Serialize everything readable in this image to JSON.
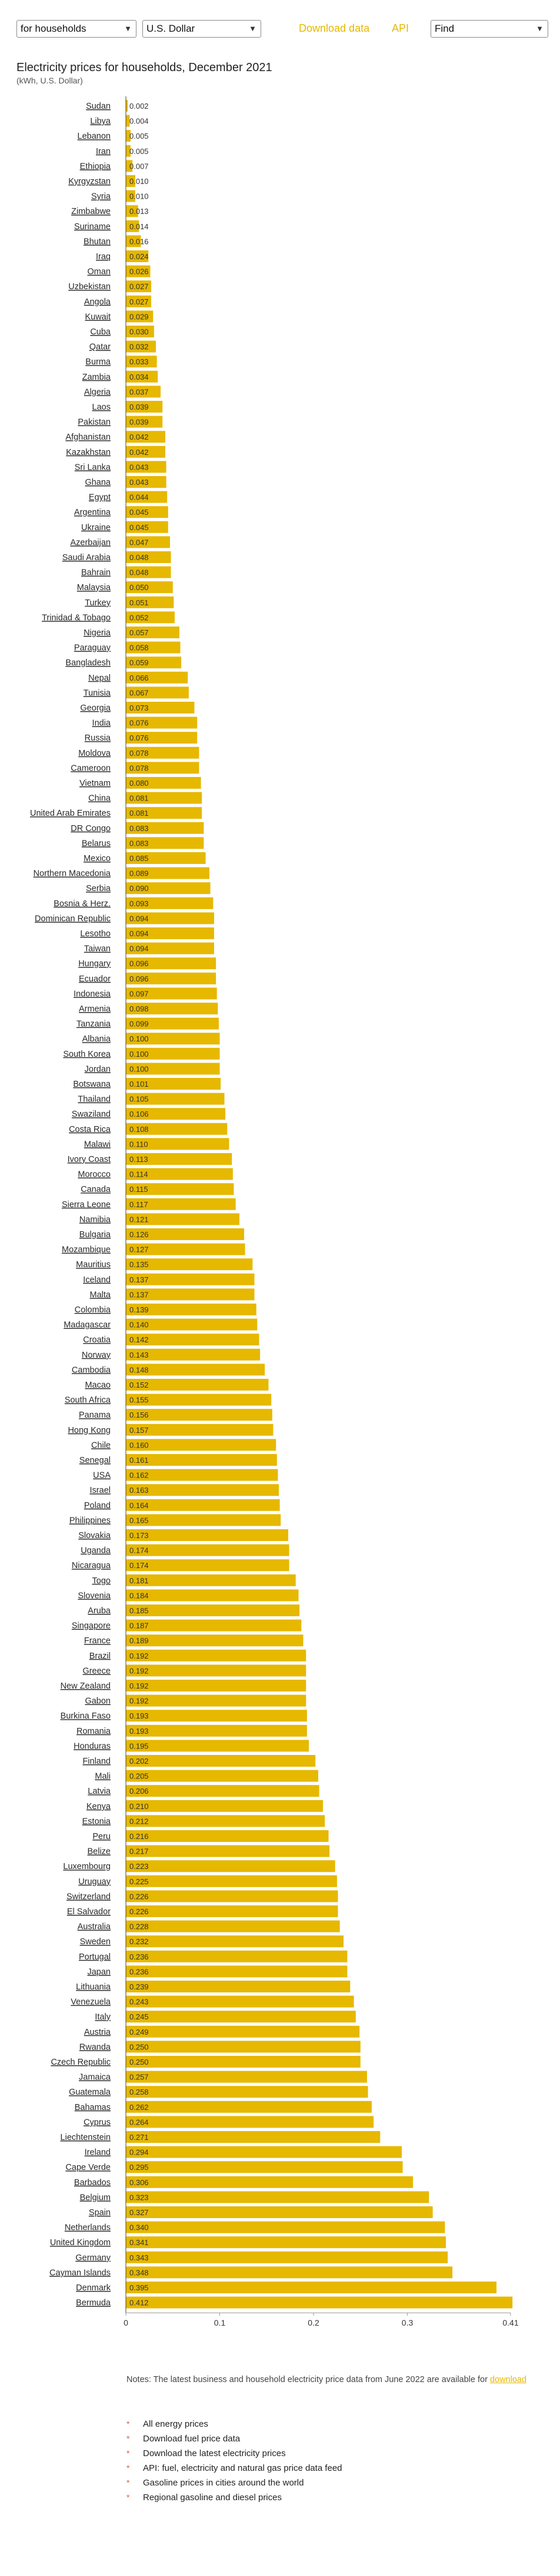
{
  "controls": {
    "consumer_select": "for households",
    "currency_select": "U.S. Dollar",
    "find_select": "Find",
    "download_link": "Download data",
    "api_link": "API"
  },
  "page": {
    "title": "Electricity prices for households, December 2021",
    "subtitle": "(kWh, U.S. Dollar)"
  },
  "chart_data": {
    "type": "bar",
    "orientation": "horizontal",
    "title": "Electricity prices for households, December 2021",
    "subtitle": "(kWh, U.S. Dollar)",
    "bar_color": "#e6b800",
    "xlim": [
      0,
      0.41
    ],
    "x_ticks": [
      "0",
      "0.1",
      "0.2",
      "0.3",
      "0.41"
    ],
    "x_tick_values": [
      0,
      0.1,
      0.2,
      0.3,
      0.41
    ],
    "categories": [
      "Sudan",
      "Libya",
      "Lebanon",
      "Iran",
      "Ethiopia",
      "Kyrgyzstan",
      "Syria",
      "Zimbabwe",
      "Suriname",
      "Bhutan",
      "Iraq",
      "Oman",
      "Uzbekistan",
      "Angola",
      "Kuwait",
      "Cuba",
      "Qatar",
      "Burma",
      "Zambia",
      "Algeria",
      "Laos",
      "Pakistan",
      "Afghanistan",
      "Kazakhstan",
      "Sri Lanka",
      "Ghana",
      "Egypt",
      "Argentina",
      "Ukraine",
      "Azerbaijan",
      "Saudi Arabia",
      "Bahrain",
      "Malaysia",
      "Turkey",
      "Trinidad & Tobago",
      "Nigeria",
      "Paraguay",
      "Bangladesh",
      "Nepal",
      "Tunisia",
      "Georgia",
      "India",
      "Russia",
      "Moldova",
      "Cameroon",
      "Vietnam",
      "China",
      "United Arab Emirates",
      "DR Congo",
      "Belarus",
      "Mexico",
      "Northern Macedonia",
      "Serbia",
      "Bosnia & Herz.",
      "Dominican Republic",
      "Lesotho",
      "Taiwan",
      "Hungary",
      "Ecuador",
      "Indonesia",
      "Armenia",
      "Tanzania",
      "Albania",
      "South Korea",
      "Jordan",
      "Botswana",
      "Thailand",
      "Swaziland",
      "Costa Rica",
      "Malawi",
      "Ivory Coast",
      "Morocco",
      "Canada",
      "Sierra Leone",
      "Namibia",
      "Bulgaria",
      "Mozambique",
      "Mauritius",
      "Iceland",
      "Malta",
      "Colombia",
      "Madagascar",
      "Croatia",
      "Norway",
      "Cambodia",
      "Macao",
      "South Africa",
      "Panama",
      "Hong Kong",
      "Chile",
      "Senegal",
      "USA",
      "Israel",
      "Poland",
      "Philippines",
      "Slovakia",
      "Uganda",
      "Nicaragua",
      "Togo",
      "Slovenia",
      "Aruba",
      "Singapore",
      "France",
      "Brazil",
      "Greece",
      "New Zealand",
      "Gabon",
      "Burkina Faso",
      "Romania",
      "Honduras",
      "Finland",
      "Mali",
      "Latvia",
      "Kenya",
      "Estonia",
      "Peru",
      "Belize",
      "Luxembourg",
      "Uruguay",
      "Switzerland",
      "El Salvador",
      "Australia",
      "Sweden",
      "Portugal",
      "Japan",
      "Lithuania",
      "Venezuela",
      "Italy",
      "Austria",
      "Rwanda",
      "Czech Republic",
      "Jamaica",
      "Guatemala",
      "Bahamas",
      "Cyprus",
      "Liechtenstein",
      "Ireland",
      "Cape Verde",
      "Barbados",
      "Belgium",
      "Spain",
      "Netherlands",
      "United Kingdom",
      "Germany",
      "Cayman Islands",
      "Denmark",
      "Bermuda"
    ],
    "values": [
      0.002,
      0.004,
      0.005,
      0.005,
      0.007,
      0.01,
      0.01,
      0.013,
      0.014,
      0.016,
      0.024,
      0.026,
      0.027,
      0.027,
      0.029,
      0.03,
      0.032,
      0.033,
      0.034,
      0.037,
      0.039,
      0.039,
      0.042,
      0.042,
      0.043,
      0.043,
      0.044,
      0.045,
      0.045,
      0.047,
      0.048,
      0.048,
      0.05,
      0.051,
      0.052,
      0.057,
      0.058,
      0.059,
      0.066,
      0.067,
      0.073,
      0.076,
      0.076,
      0.078,
      0.078,
      0.08,
      0.081,
      0.081,
      0.083,
      0.083,
      0.085,
      0.089,
      0.09,
      0.093,
      0.094,
      0.094,
      0.094,
      0.096,
      0.096,
      0.097,
      0.098,
      0.099,
      0.1,
      0.1,
      0.1,
      0.101,
      0.105,
      0.106,
      0.108,
      0.11,
      0.113,
      0.114,
      0.115,
      0.117,
      0.121,
      0.126,
      0.127,
      0.135,
      0.137,
      0.137,
      0.139,
      0.14,
      0.142,
      0.143,
      0.148,
      0.152,
      0.155,
      0.156,
      0.157,
      0.16,
      0.161,
      0.162,
      0.163,
      0.164,
      0.165,
      0.173,
      0.174,
      0.174,
      0.181,
      0.184,
      0.185,
      0.187,
      0.189,
      0.192,
      0.192,
      0.192,
      0.192,
      0.193,
      0.193,
      0.195,
      0.202,
      0.205,
      0.206,
      0.21,
      0.212,
      0.216,
      0.217,
      0.223,
      0.225,
      0.226,
      0.226,
      0.228,
      0.232,
      0.236,
      0.236,
      0.239,
      0.243,
      0.245,
      0.249,
      0.25,
      0.25,
      0.257,
      0.258,
      0.262,
      0.264,
      0.271,
      0.294,
      0.295,
      0.306,
      0.323,
      0.327,
      0.34,
      0.341,
      0.343,
      0.348,
      0.395,
      0.412
    ],
    "value_labels": [
      "0.002",
      "0.004",
      "0.005",
      "0.005",
      "0.007",
      "0.010",
      "0.010",
      "0.013",
      "0.014",
      "0.016",
      "0.024",
      "0.026",
      "0.027",
      "0.027",
      "0.029",
      "0.030",
      "0.032",
      "0.033",
      "0.034",
      "0.037",
      "0.039",
      "0.039",
      "0.042",
      "0.042",
      "0.043",
      "0.043",
      "0.044",
      "0.045",
      "0.045",
      "0.047",
      "0.048",
      "0.048",
      "0.050",
      "0.051",
      "0.052",
      "0.057",
      "0.058",
      "0.059",
      "0.066",
      "0.067",
      "0.073",
      "0.076",
      "0.076",
      "0.078",
      "0.078",
      "0.080",
      "0.081",
      "0.081",
      "0.083",
      "0.083",
      "0.085",
      "0.089",
      "0.090",
      "0.093",
      "0.094",
      "0.094",
      "0.094",
      "0.096",
      "0.096",
      "0.097",
      "0.098",
      "0.099",
      "0.100",
      "0.100",
      "0.100",
      "0.101",
      "0.105",
      "0.106",
      "0.108",
      "0.110",
      "0.113",
      "0.114",
      "0.115",
      "0.117",
      "0.121",
      "0.126",
      "0.127",
      "0.135",
      "0.137",
      "0.137",
      "0.139",
      "0.140",
      "0.142",
      "0.143",
      "0.148",
      "0.152",
      "0.155",
      "0.156",
      "0.157",
      "0.160",
      "0.161",
      "0.162",
      "0.163",
      "0.164",
      "0.165",
      "0.173",
      "0.174",
      "0.174",
      "0.181",
      "0.184",
      "0.185",
      "0.187",
      "0.189",
      "0.192",
      "0.192",
      "0.192",
      "0.192",
      "0.193",
      "0.193",
      "0.195",
      "0.202",
      "0.205",
      "0.206",
      "0.210",
      "0.212",
      "0.216",
      "0.217",
      "0.223",
      "0.225",
      "0.226",
      "0.226",
      "0.228",
      "0.232",
      "0.236",
      "0.236",
      "0.239",
      "0.243",
      "0.245",
      "0.249",
      "0.250",
      "0.250",
      "0.257",
      "0.258",
      "0.262",
      "0.264",
      "0.271",
      "0.294",
      "0.295",
      "0.306",
      "0.323",
      "0.327",
      "0.340",
      "0.341",
      "0.343",
      "0.348",
      "0.395",
      "0.412"
    ],
    "grid": false
  },
  "notes": {
    "text": "Notes: The latest business and household electricity price data from June 2022 are available for",
    "link": "download"
  },
  "related_links": [
    "All energy prices",
    "Download fuel price data",
    "Download the latest electricity prices",
    "API: fuel, electricity and natural gas price data feed",
    "Gasoline prices in cities around the world",
    "Regional gasoline and diesel prices"
  ],
  "icons": {
    "select_arrow": "chevron-down-icon",
    "list_bullet": "bullet-star-icon"
  }
}
